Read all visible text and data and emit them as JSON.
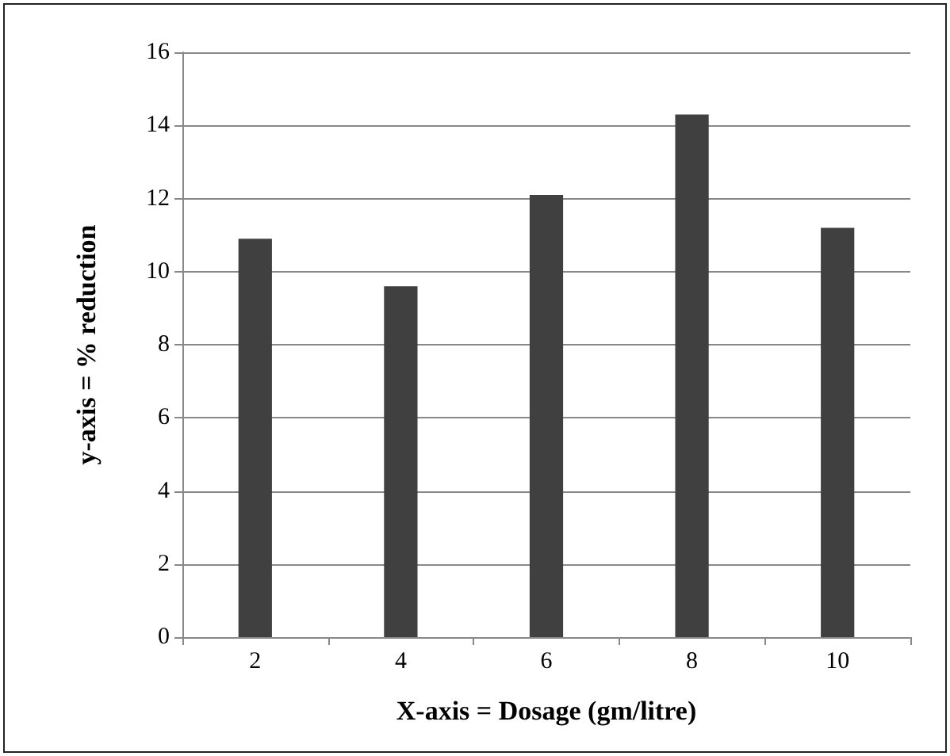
{
  "chart_data": {
    "type": "bar",
    "xlabel": "X-axis = Dosage (gm/litre)",
    "ylabel": "y-axis = % reduction",
    "categories": [
      "2",
      "4",
      "6",
      "8",
      "10"
    ],
    "values": [
      10.9,
      9.6,
      12.1,
      14.3,
      11.2
    ],
    "color": "#404040",
    "ylim": [
      0,
      16
    ],
    "yticks": [
      0,
      2,
      4,
      6,
      8,
      10,
      12,
      14,
      16
    ],
    "grid": "y"
  }
}
